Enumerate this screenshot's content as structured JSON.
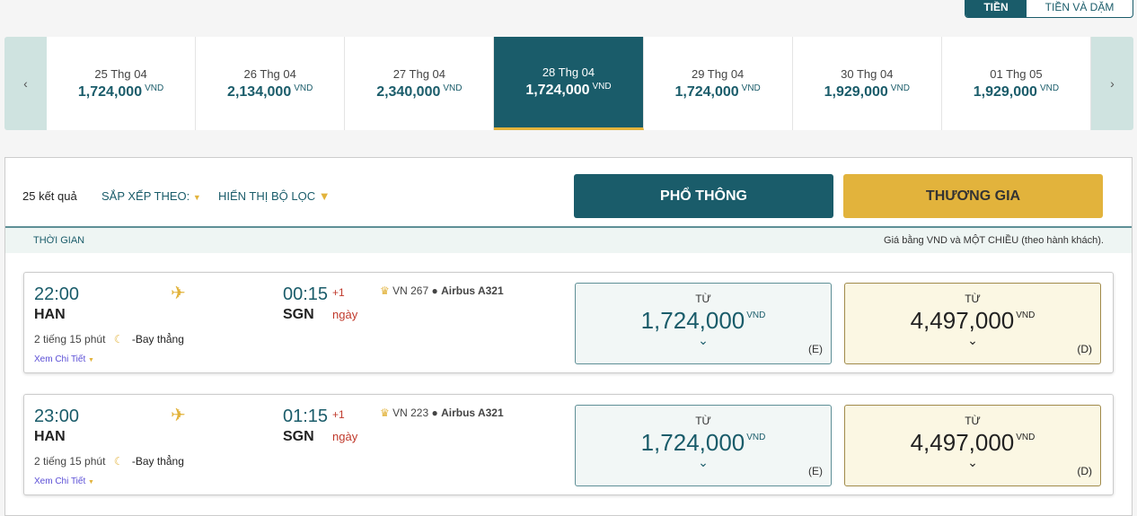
{
  "toggle": {
    "active": "TIỀN",
    "other": "TIỀN VÀ DẶM"
  },
  "strip": {
    "prev": "‹",
    "next": "›",
    "currency": "VND",
    "days": [
      {
        "date": "25 Thg 04",
        "price": "1,724,000"
      },
      {
        "date": "26 Thg 04",
        "price": "2,134,000"
      },
      {
        "date": "27 Thg 04",
        "price": "2,340,000"
      },
      {
        "date": "28 Thg 04",
        "price": "1,724,000",
        "selected": true
      },
      {
        "date": "29 Thg 04",
        "price": "1,724,000"
      },
      {
        "date": "30 Thg 04",
        "price": "1,929,000"
      },
      {
        "date": "01 Thg 05",
        "price": "1,929,000"
      }
    ]
  },
  "toolbar": {
    "results": "25 kết quả",
    "sort": "SẮP XẾP THEO:",
    "filter": "HIỂN THỊ BỘ LỌC",
    "economy": "PHỔ THÔNG",
    "business": "THƯƠNG GIA"
  },
  "header": {
    "time": "THỜI GIAN",
    "note": "Giá bằng VND và MỘT CHIỀU (theo hành khách)."
  },
  "colors": {
    "primary": "#1a5c6a",
    "gold": "#e2b33c",
    "red": "#c0392b"
  },
  "flights": [
    {
      "dep": "22:00",
      "from": "HAN",
      "arr": "00:15",
      "to": "SGN",
      "plus": "+1",
      "day": "ngày",
      "flight": "VN 267",
      "aircraft": "Airbus A321",
      "duration": "2 tiếng 15 phút",
      "stops": "-Bay thẳng",
      "details": "Xem Chi Tiết",
      "from_label": "TỪ",
      "eco": "1,724,000",
      "eco_cls": "(E)",
      "bus": "4,497,000",
      "bus_cls": "(D)",
      "cur": "VND"
    },
    {
      "dep": "23:00",
      "from": "HAN",
      "arr": "01:15",
      "to": "SGN",
      "plus": "+1",
      "day": "ngày",
      "flight": "VN 223",
      "aircraft": "Airbus A321",
      "duration": "2 tiếng 15 phút",
      "stops": "-Bay thẳng",
      "details": "Xem Chi Tiết",
      "from_label": "TỪ",
      "eco": "1,724,000",
      "eco_cls": "(E)",
      "bus": "4,497,000",
      "bus_cls": "(D)",
      "cur": "VND"
    }
  ]
}
